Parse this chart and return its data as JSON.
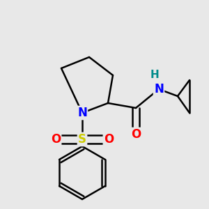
{
  "bg_color": "#e8e8e8",
  "atom_colors": {
    "N": "#0000ff",
    "O": "#ff0000",
    "S": "#cccc00",
    "H": "#008b8b",
    "C": "#000000"
  },
  "bond_color": "#000000",
  "bond_width": 1.8,
  "figsize": [
    3.0,
    3.0
  ],
  "dpi": 100
}
